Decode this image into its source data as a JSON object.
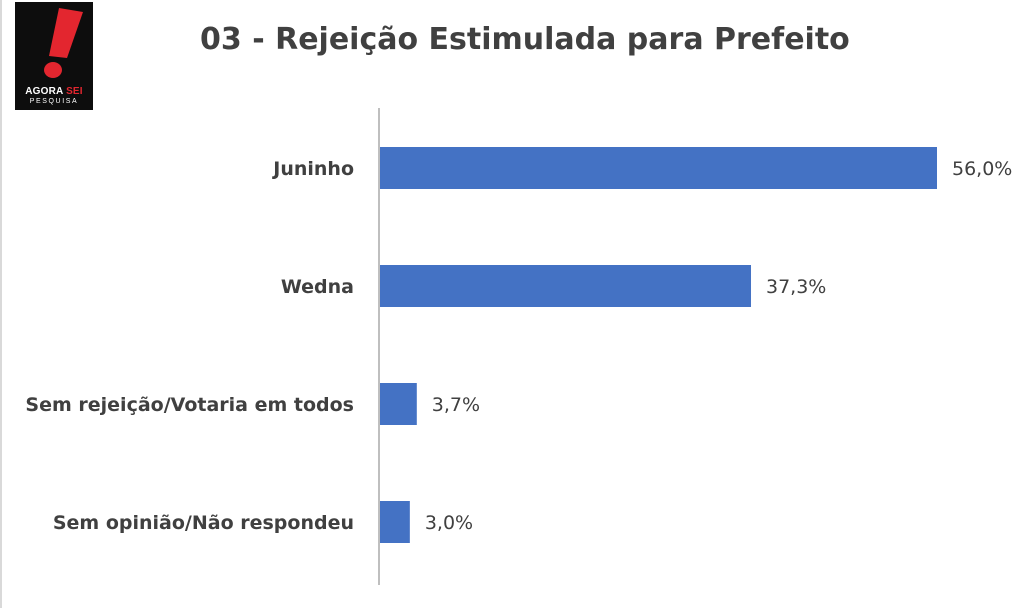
{
  "logo": {
    "line1a": "AGORA",
    "line1b": "SEI",
    "line2": "PESQUISA"
  },
  "colors": {
    "bar": "#4472c4",
    "axis": "#bfbfbf",
    "text": "#404040",
    "logo_bg": "#0d0d0d",
    "logo_mark": "#e3262f"
  },
  "chart_data": {
    "type": "bar",
    "orientation": "horizontal",
    "title": "03 - Rejeição Estimulada para Prefeito",
    "categories": [
      "Juninho",
      "Wedna",
      "Sem rejeição/Votaria em todos",
      "Sem opinião/Não respondeu"
    ],
    "values": [
      56.0,
      37.3,
      3.7,
      3.0
    ],
    "value_labels": [
      "56,0%",
      "37,3%",
      "3,7%",
      "3,0%"
    ],
    "unit": "%",
    "xlim": [
      0,
      56.0
    ],
    "grid": false,
    "legend": "none"
  }
}
